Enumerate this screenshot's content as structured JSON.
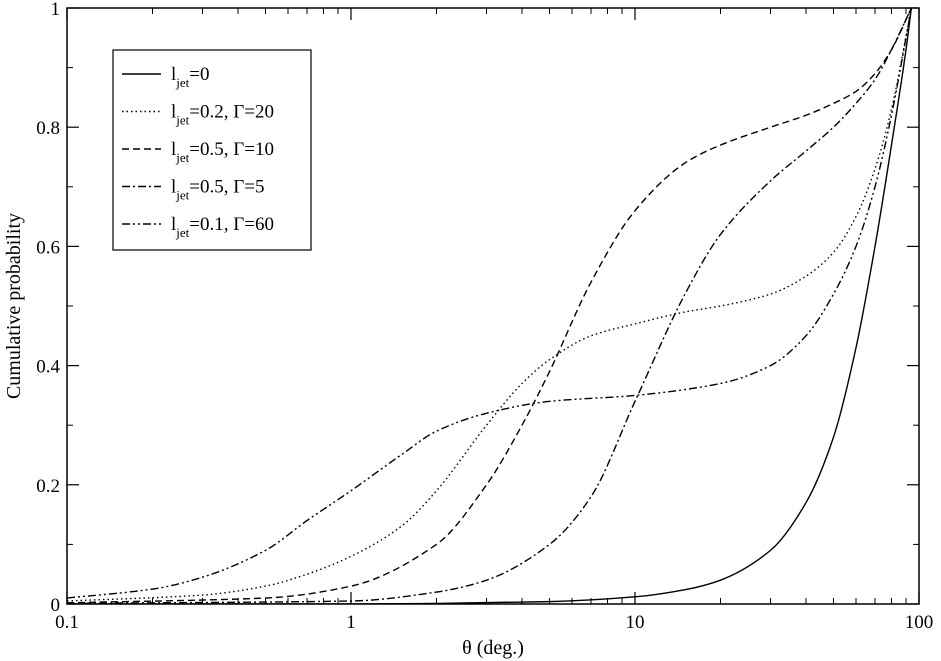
{
  "chart_data": {
    "type": "line",
    "title": "",
    "xlabel": "θ (deg.)",
    "ylabel": "Cumulative probability",
    "xscale": "log",
    "xlim": [
      0.1,
      100
    ],
    "ylim": [
      0,
      1
    ],
    "grid": false,
    "legend_position": "top-left",
    "x_ticks": [
      {
        "value": 0.1,
        "label": "0.1"
      },
      {
        "value": 1,
        "label": "1"
      },
      {
        "value": 10,
        "label": "10"
      },
      {
        "value": 100,
        "label": "100"
      }
    ],
    "y_ticks": [
      {
        "value": 0,
        "label": "0"
      },
      {
        "value": 0.2,
        "label": "0.2"
      },
      {
        "value": 0.4,
        "label": "0.4"
      },
      {
        "value": 0.6,
        "label": "0.6"
      },
      {
        "value": 0.8,
        "label": "0.8"
      },
      {
        "value": 1,
        "label": "1"
      }
    ],
    "series": [
      {
        "legend": {
          "main": "l",
          "sub": "jet",
          "rest": "=0"
        },
        "style": "solid",
        "x": [
          0.1,
          1,
          2,
          5,
          10,
          15,
          20,
          30,
          40,
          50,
          60,
          70,
          80,
          90,
          94
        ],
        "y": [
          0,
          0,
          0.001,
          0.004,
          0.012,
          0.024,
          0.04,
          0.09,
          0.17,
          0.28,
          0.43,
          0.6,
          0.77,
          0.93,
          1.0
        ]
      },
      {
        "legend": {
          "main": "l",
          "sub": "jet",
          "rest": "=0.2, Γ=20"
        },
        "style": "dotted",
        "x": [
          0.1,
          0.3,
          0.5,
          0.7,
          1,
          1.5,
          2,
          3,
          4,
          5,
          7,
          10,
          15,
          20,
          30,
          40,
          50,
          60,
          70,
          80,
          94
        ],
        "y": [
          0.005,
          0.015,
          0.03,
          0.05,
          0.08,
          0.13,
          0.19,
          0.3,
          0.37,
          0.41,
          0.45,
          0.47,
          0.49,
          0.5,
          0.52,
          0.55,
          0.59,
          0.65,
          0.73,
          0.83,
          1.0
        ]
      },
      {
        "legend": {
          "main": "l",
          "sub": "jet",
          "rest": "=0.5, Γ=10"
        },
        "style": "dashed",
        "x": [
          0.1,
          0.5,
          1,
          2,
          3,
          4,
          5,
          7,
          10,
          15,
          20,
          30,
          40,
          50,
          60,
          70,
          80,
          94
        ],
        "y": [
          0.002,
          0.01,
          0.03,
          0.1,
          0.2,
          0.3,
          0.39,
          0.54,
          0.66,
          0.74,
          0.77,
          0.8,
          0.82,
          0.84,
          0.86,
          0.89,
          0.93,
          1.0
        ]
      },
      {
        "legend": {
          "main": "l",
          "sub": "jet",
          "rest": "=0.5, Γ=5"
        },
        "style": "dashdot",
        "x": [
          0.1,
          1,
          2,
          3,
          5,
          7,
          10,
          15,
          20,
          30,
          40,
          50,
          60,
          70,
          80,
          94
        ],
        "y": [
          0.001,
          0.005,
          0.02,
          0.04,
          0.1,
          0.18,
          0.34,
          0.52,
          0.62,
          0.71,
          0.76,
          0.8,
          0.84,
          0.88,
          0.93,
          1.0
        ]
      },
      {
        "legend": {
          "main": "l",
          "sub": "jet",
          "rest": "=0.1, Γ=60"
        },
        "style": "dashdotdot",
        "x": [
          0.1,
          0.2,
          0.3,
          0.5,
          0.7,
          1,
          1.5,
          2,
          3,
          5,
          10,
          20,
          30,
          40,
          50,
          60,
          70,
          80,
          94
        ],
        "y": [
          0.01,
          0.025,
          0.045,
          0.09,
          0.14,
          0.19,
          0.25,
          0.29,
          0.32,
          0.34,
          0.35,
          0.37,
          0.4,
          0.45,
          0.52,
          0.6,
          0.7,
          0.82,
          1.0
        ]
      }
    ]
  }
}
